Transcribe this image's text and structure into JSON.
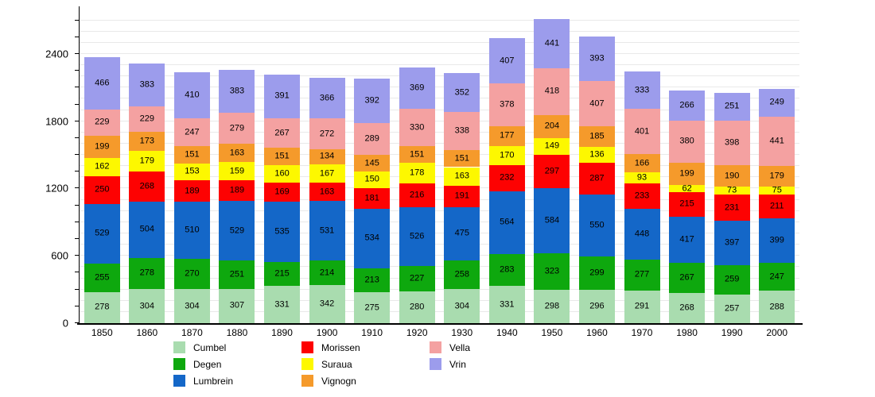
{
  "chart_data": {
    "type": "bar",
    "stacked": true,
    "title": "",
    "xlabel": "",
    "ylabel": "",
    "x": [
      "1850",
      "1860",
      "1870",
      "1880",
      "1890",
      "1900",
      "1910",
      "1920",
      "1930",
      "1940",
      "1950",
      "1960",
      "1970",
      "1980",
      "1990",
      "2000"
    ],
    "series": [
      {
        "name": "Cumbel",
        "color": "#a9dcaf",
        "values": [
          278,
          304,
          304,
          307,
          331,
          342,
          275,
          280,
          304,
          331,
          298,
          296,
          291,
          268,
          257,
          288
        ]
      },
      {
        "name": "Degen",
        "color": "#0ea80e",
        "values": [
          255,
          278,
          270,
          251,
          215,
          214,
          213,
          227,
          258,
          283,
          323,
          299,
          277,
          267,
          259,
          247
        ]
      },
      {
        "name": "Lumbrein",
        "color": "#1467c8",
        "values": [
          529,
          504,
          510,
          529,
          535,
          531,
          534,
          526,
          475,
          564,
          584,
          550,
          448,
          417,
          397,
          399
        ]
      },
      {
        "name": "Morissen",
        "color": "#fd0202",
        "values": [
          250,
          268,
          189,
          189,
          169,
          163,
          181,
          216,
          191,
          232,
          297,
          287,
          233,
          215,
          231,
          211
        ]
      },
      {
        "name": "Suraua",
        "color": "#fdf800",
        "values": [
          162,
          179,
          153,
          159,
          160,
          167,
          150,
          178,
          163,
          170,
          149,
          136,
          93,
          62,
          73,
          75
        ]
      },
      {
        "name": "Vignogn",
        "color": "#f59a2b",
        "values": [
          199,
          173,
          151,
          163,
          151,
          134,
          145,
          151,
          151,
          177,
          204,
          185,
          166,
          199,
          190,
          179
        ]
      },
      {
        "name": "Vella",
        "color": "#f4a1a1",
        "values": [
          229,
          229,
          247,
          279,
          267,
          272,
          289,
          330,
          338,
          378,
          418,
          407,
          401,
          380,
          398,
          441
        ]
      },
      {
        "name": "Vrin",
        "color": "#9c9cec",
        "values": [
          466,
          383,
          410,
          383,
          391,
          366,
          392,
          369,
          352,
          407,
          441,
          393,
          333,
          266,
          251,
          249
        ]
      }
    ],
    "ylim": [
      0,
      2810
    ],
    "yticks": [
      0,
      600,
      1200,
      1800,
      2400
    ],
    "minor_tick_interval": 150,
    "grid_interval": 100,
    "grid": true,
    "legend_position": "bottom",
    "legend_columns": [
      [
        "Cumbel",
        "Degen",
        "Lumbrein"
      ],
      [
        "Morissen",
        "Suraua",
        "Vignogn"
      ],
      [
        "Vella",
        "Vrin"
      ]
    ]
  }
}
